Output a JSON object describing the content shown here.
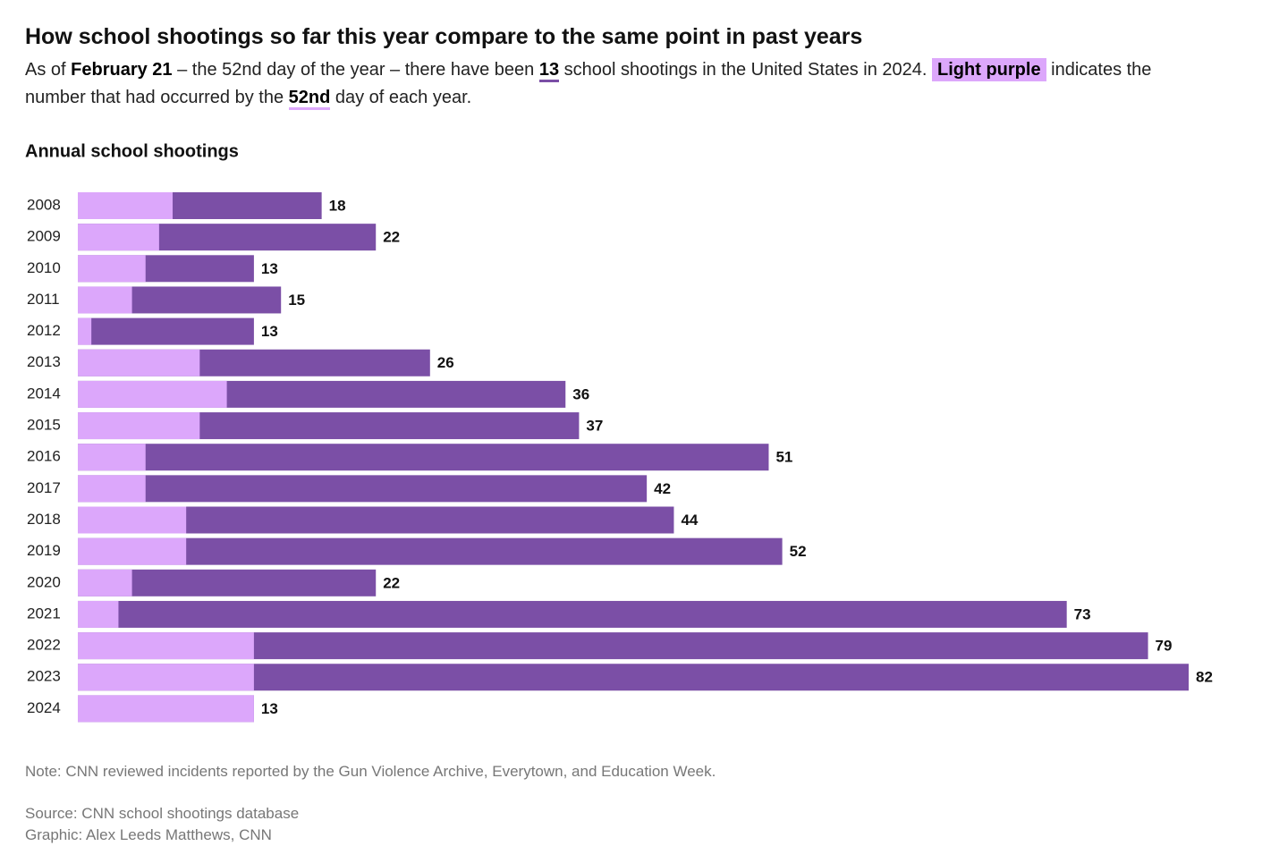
{
  "chart_data": {
    "type": "bar",
    "title": "How school shootings so far this year compare to the same point in past years",
    "subtitle_parts": [
      "As of ",
      "February 21",
      " – the 52nd day of the year – there have been ",
      "13",
      " school shootings in the United States in 2024. ",
      "Light purple",
      " indicates the number that had occurred by the ",
      "52nd",
      " day of each year."
    ],
    "chart_title": "Annual school shootings",
    "categories": [
      "2008",
      "2009",
      "2010",
      "2011",
      "2012",
      "2013",
      "2014",
      "2015",
      "2016",
      "2017",
      "2018",
      "2019",
      "2020",
      "2021",
      "2022",
      "2023",
      "2024"
    ],
    "series": [
      {
        "color": "#7b4fa6",
        "values": [
          18,
          22,
          13,
          15,
          13,
          26,
          36,
          37,
          51,
          42,
          44,
          52,
          22,
          73,
          79,
          82,
          13
        ]
      },
      {
        "color": "#dca7fb",
        "values": [
          7,
          6,
          5,
          4,
          1,
          9,
          11,
          9,
          5,
          5,
          8,
          8,
          4,
          3,
          13,
          13,
          13
        ]
      }
    ],
    "note": "Note: CNN reviewed incidents reported by the Gun Violence Archive, Everytown, and Education Week.",
    "source": "Source: CNN school shootings database",
    "credit": "Graphic: Alex Leeds Matthews, CNN"
  }
}
